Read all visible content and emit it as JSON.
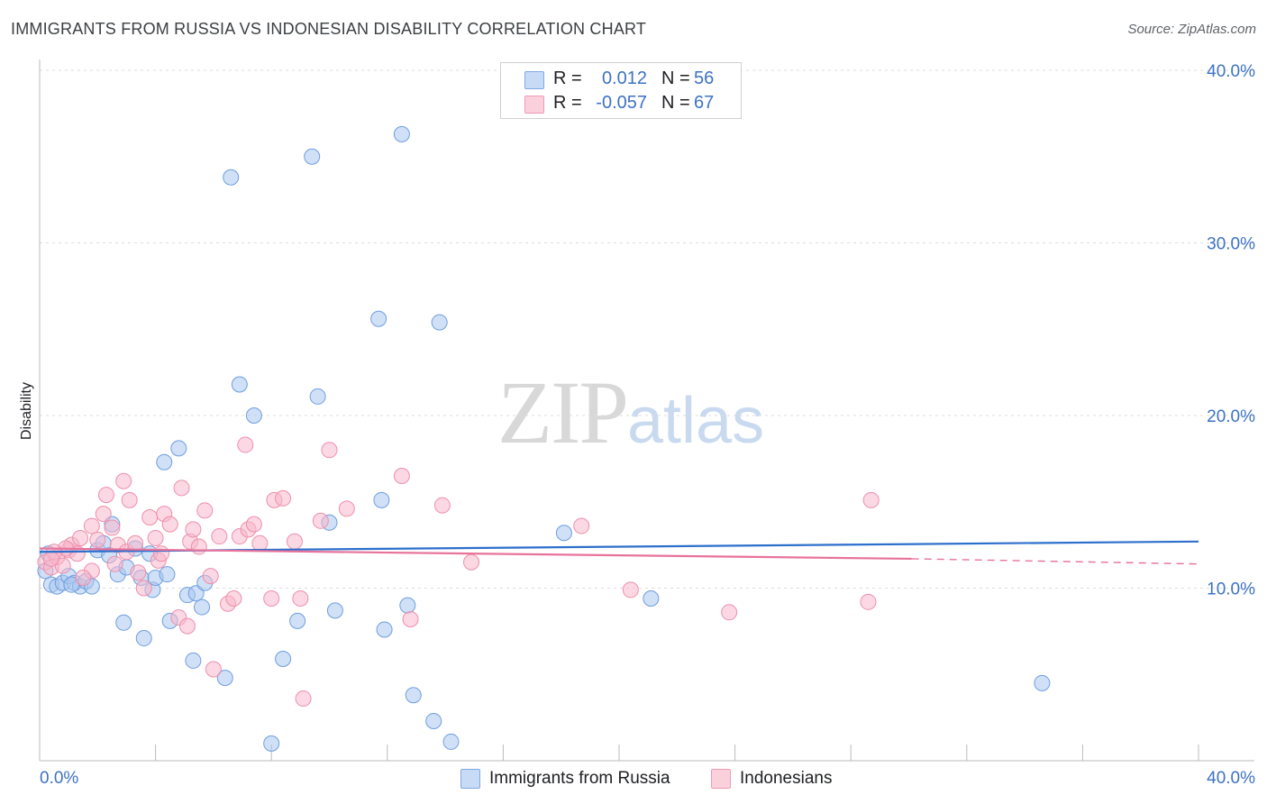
{
  "header": {
    "title": "IMMIGRANTS FROM RUSSIA VS INDONESIAN DISABILITY CORRELATION CHART",
    "source": "Source: ZipAtlas.com"
  },
  "watermark": {
    "zip": "ZIP",
    "atlas": "atlas"
  },
  "legend": {
    "rows": [
      {
        "r_label": "R =",
        "r_value": "0.012",
        "n_label": "N =",
        "n_value": "56",
        "color": "#a9c6ef"
      },
      {
        "r_label": "R =",
        "r_value": "-0.057",
        "n_label": "N =",
        "n_value": "67",
        "color": "#f8b8cc"
      }
    ]
  },
  "chart_data": {
    "type": "scatter",
    "title": "IMMIGRANTS FROM RUSSIA VS INDONESIAN DISABILITY CORRELATION CHART",
    "xlabel": "",
    "ylabel": "Disability",
    "xlim": [
      0,
      40
    ],
    "ylim": [
      0,
      40
    ],
    "x_tick_labels": [
      "0.0%",
      "40.0%"
    ],
    "y_tick_labels": [
      "10.0%",
      "20.0%",
      "30.0%",
      "40.0%"
    ],
    "y_ticks": [
      10,
      20,
      30,
      40
    ],
    "grid": true,
    "legend_position": "top-center",
    "series": [
      {
        "name": "Immigrants from Russia",
        "color": "#a9c6ef",
        "stroke": "#6f9ee0",
        "trend_color": "#2d6fcc",
        "trend": {
          "x": [
            0,
            40
          ],
          "y": [
            12.1,
            12.7
          ]
        },
        "points": [
          [
            0.2,
            11.0
          ],
          [
            0.4,
            10.2
          ],
          [
            0.6,
            10.1
          ],
          [
            0.8,
            10.3
          ],
          [
            1.0,
            10.7
          ],
          [
            1.2,
            10.3
          ],
          [
            1.4,
            10.1
          ],
          [
            1.6,
            10.4
          ],
          [
            1.8,
            10.1
          ],
          [
            2.0,
            12.2
          ],
          [
            2.2,
            12.6
          ],
          [
            2.5,
            13.7
          ],
          [
            2.7,
            10.8
          ],
          [
            3.0,
            11.2
          ],
          [
            3.3,
            12.3
          ],
          [
            3.5,
            10.6
          ],
          [
            3.9,
            9.9
          ],
          [
            4.0,
            10.6
          ],
          [
            4.4,
            10.8
          ],
          [
            4.5,
            8.1
          ],
          [
            4.8,
            18.1
          ],
          [
            4.3,
            17.3
          ],
          [
            5.1,
            9.6
          ],
          [
            5.4,
            9.7
          ],
          [
            5.6,
            8.9
          ],
          [
            5.7,
            10.3
          ],
          [
            5.3,
            5.8
          ],
          [
            6.4,
            4.8
          ],
          [
            6.6,
            33.8
          ],
          [
            6.9,
            21.8
          ],
          [
            7.4,
            20.0
          ],
          [
            8.0,
            1.0
          ],
          [
            8.4,
            5.9
          ],
          [
            8.9,
            8.1
          ],
          [
            9.4,
            35.0
          ],
          [
            9.6,
            21.1
          ],
          [
            10.0,
            13.8
          ],
          [
            10.2,
            8.7
          ],
          [
            11.7,
            25.6
          ],
          [
            11.8,
            15.1
          ],
          [
            11.9,
            7.6
          ],
          [
            12.5,
            36.3
          ],
          [
            12.7,
            9.0
          ],
          [
            12.9,
            3.8
          ],
          [
            13.6,
            2.3
          ],
          [
            13.8,
            25.4
          ],
          [
            14.2,
            1.1
          ],
          [
            18.1,
            13.2
          ],
          [
            21.1,
            9.4
          ],
          [
            34.6,
            4.5
          ],
          [
            2.9,
            8.0
          ],
          [
            3.6,
            7.1
          ],
          [
            1.1,
            10.2
          ],
          [
            2.4,
            11.9
          ],
          [
            0.3,
            12.0
          ],
          [
            3.8,
            12.0
          ]
        ]
      },
      {
        "name": "Indonesians",
        "color": "#f8b8cc",
        "stroke": "#ee8fab",
        "trend_color": "#e8739a",
        "trend": {
          "x": [
            0,
            30.1
          ],
          "y": [
            12.3,
            11.7
          ]
        },
        "trend_dashed": {
          "x": [
            30.1,
            40
          ],
          "y": [
            11.7,
            11.4
          ]
        },
        "points": [
          [
            0.2,
            11.5
          ],
          [
            0.4,
            11.2
          ],
          [
            0.6,
            11.8
          ],
          [
            0.8,
            11.3
          ],
          [
            1.0,
            12.2
          ],
          [
            1.1,
            12.5
          ],
          [
            1.3,
            12.0
          ],
          [
            1.4,
            12.9
          ],
          [
            1.8,
            13.6
          ],
          [
            1.8,
            11.0
          ],
          [
            2.0,
            12.8
          ],
          [
            2.2,
            14.3
          ],
          [
            2.3,
            15.4
          ],
          [
            2.5,
            13.5
          ],
          [
            2.7,
            12.5
          ],
          [
            2.9,
            16.2
          ],
          [
            3.0,
            12.1
          ],
          [
            3.1,
            15.1
          ],
          [
            3.3,
            12.6
          ],
          [
            3.4,
            10.9
          ],
          [
            3.6,
            10.0
          ],
          [
            3.8,
            14.1
          ],
          [
            4.0,
            12.9
          ],
          [
            4.1,
            11.6
          ],
          [
            4.2,
            12.0
          ],
          [
            4.3,
            14.3
          ],
          [
            4.5,
            13.7
          ],
          [
            4.8,
            8.3
          ],
          [
            4.9,
            15.8
          ],
          [
            5.1,
            7.8
          ],
          [
            5.2,
            12.7
          ],
          [
            5.3,
            13.4
          ],
          [
            5.5,
            12.4
          ],
          [
            5.7,
            14.5
          ],
          [
            5.9,
            10.7
          ],
          [
            6.0,
            5.3
          ],
          [
            6.2,
            13.0
          ],
          [
            6.5,
            9.1
          ],
          [
            6.7,
            9.4
          ],
          [
            6.9,
            13.0
          ],
          [
            7.1,
            18.3
          ],
          [
            7.2,
            13.4
          ],
          [
            7.4,
            13.7
          ],
          [
            7.6,
            12.6
          ],
          [
            8.0,
            9.4
          ],
          [
            8.1,
            15.1
          ],
          [
            8.4,
            15.2
          ],
          [
            8.8,
            12.7
          ],
          [
            9.0,
            9.4
          ],
          [
            9.1,
            3.6
          ],
          [
            9.7,
            13.9
          ],
          [
            10.0,
            18.0
          ],
          [
            10.6,
            14.6
          ],
          [
            12.5,
            16.5
          ],
          [
            12.8,
            8.2
          ],
          [
            13.9,
            14.8
          ],
          [
            14.9,
            11.5
          ],
          [
            18.7,
            13.6
          ],
          [
            20.4,
            9.9
          ],
          [
            23.8,
            8.6
          ],
          [
            28.7,
            15.1
          ],
          [
            28.6,
            9.2
          ],
          [
            2.6,
            11.4
          ],
          [
            0.9,
            12.3
          ],
          [
            1.5,
            10.6
          ],
          [
            0.5,
            12.1
          ],
          [
            0.4,
            11.7
          ]
        ]
      }
    ]
  }
}
